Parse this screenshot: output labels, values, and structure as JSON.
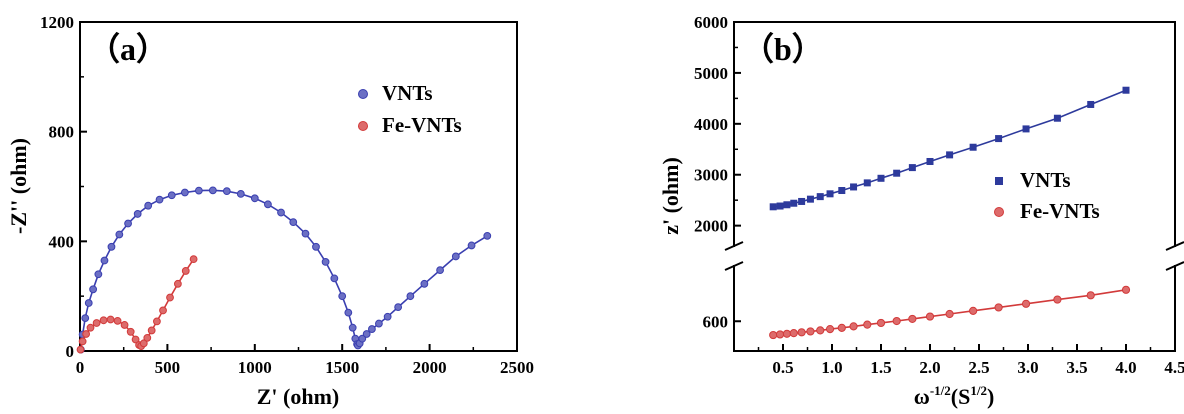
{
  "chart_data": [
    {
      "type": "scatter",
      "panel_label": "（a）",
      "xlabel": "Z' (ohm)",
      "ylabel": "-Z'' (ohm)",
      "xlim": [
        0,
        2500
      ],
      "ylim": [
        0,
        1200
      ],
      "xticks": [
        "0",
        "500",
        "1000",
        "1500",
        "2000",
        "2500"
      ],
      "yticks": [
        "0",
        "400",
        "800",
        "1200"
      ],
      "legend_position": "top-right",
      "series": [
        {
          "name": "VNTs",
          "color": "#3a3fb0",
          "marker": "circle",
          "x": [
            5,
            15,
            30,
            50,
            75,
            105,
            140,
            180,
            225,
            275,
            330,
            390,
            455,
            525,
            600,
            680,
            760,
            840,
            920,
            1000,
            1075,
            1150,
            1220,
            1290,
            1350,
            1405,
            1455,
            1500,
            1535,
            1560,
            1575,
            1585,
            1590,
            1600,
            1615,
            1640,
            1670,
            1710,
            1760,
            1820,
            1890,
            1970,
            2060,
            2150,
            2240,
            2330
          ],
          "y": [
            5,
            60,
            120,
            175,
            225,
            280,
            330,
            380,
            425,
            465,
            500,
            530,
            552,
            568,
            578,
            585,
            586,
            583,
            573,
            557,
            535,
            505,
            470,
            428,
            380,
            325,
            265,
            200,
            140,
            85,
            45,
            25,
            20,
            28,
            45,
            62,
            80,
            100,
            125,
            160,
            200,
            245,
            295,
            345,
            385,
            420
          ]
        },
        {
          "name": "Fe-VNTs",
          "color": "#d23a3a",
          "marker": "circle",
          "x": [
            3,
            15,
            35,
            60,
            95,
            135,
            175,
            215,
            255,
            290,
            318,
            338,
            350,
            365,
            385,
            410,
            440,
            475,
            515,
            560,
            605,
            650
          ],
          "y": [
            5,
            35,
            62,
            85,
            102,
            112,
            115,
            110,
            95,
            70,
            42,
            22,
            18,
            28,
            48,
            75,
            108,
            148,
            195,
            245,
            292,
            335
          ]
        }
      ]
    },
    {
      "type": "scatter",
      "panel_label": "（b）",
      "xlabel": "ω^-1/2(S^1/2)",
      "xlabel_base": "ω",
      "xlabel_sup1": "-1/2",
      "xlabel_mid": "(S",
      "xlabel_sup2": "1/2",
      "xlabel_end": ")",
      "ylabel": "z' (ohm)",
      "xlim": [
        0,
        4.5
      ],
      "ylim_upper": [
        1600,
        6000
      ],
      "ylim_lower": [
        460,
        860
      ],
      "axis_break": true,
      "xticks": [
        "0.5",
        "1.0",
        "1.5",
        "2.0",
        "2.5",
        "3.0",
        "3.5",
        "4.0",
        "4.5"
      ],
      "yticks_upper": [
        "2000",
        "3000",
        "4000",
        "5000",
        "6000"
      ],
      "yticks_lower": [
        "600"
      ],
      "legend_position": "right",
      "series": [
        {
          "name": "VNTs",
          "color": "#2d3a9c",
          "marker": "square",
          "x": [
            0.4,
            0.47,
            0.54,
            0.61,
            0.69,
            0.78,
            0.88,
            0.98,
            1.1,
            1.22,
            1.36,
            1.5,
            1.66,
            1.82,
            2.0,
            2.2,
            2.44,
            2.7,
            2.98,
            3.3,
            3.64,
            4.0
          ],
          "y": [
            2370,
            2385,
            2410,
            2440,
            2475,
            2520,
            2570,
            2625,
            2690,
            2760,
            2840,
            2930,
            3030,
            3140,
            3260,
            3390,
            3540,
            3710,
            3900,
            4110,
            4380,
            4660
          ]
        },
        {
          "name": "Fe-VNTs",
          "color": "#d23a3a",
          "marker": "circle",
          "x": [
            0.4,
            0.47,
            0.54,
            0.61,
            0.69,
            0.78,
            0.88,
            0.98,
            1.1,
            1.22,
            1.36,
            1.5,
            1.66,
            1.82,
            2.0,
            2.2,
            2.44,
            2.7,
            2.98,
            3.3,
            3.64,
            4.0
          ],
          "y": [
            535,
            538,
            541,
            544,
            548,
            552,
            557,
            563,
            569,
            576,
            584,
            592,
            601,
            611,
            622,
            634,
            649,
            665,
            682,
            702,
            722,
            748
          ]
        }
      ]
    }
  ]
}
